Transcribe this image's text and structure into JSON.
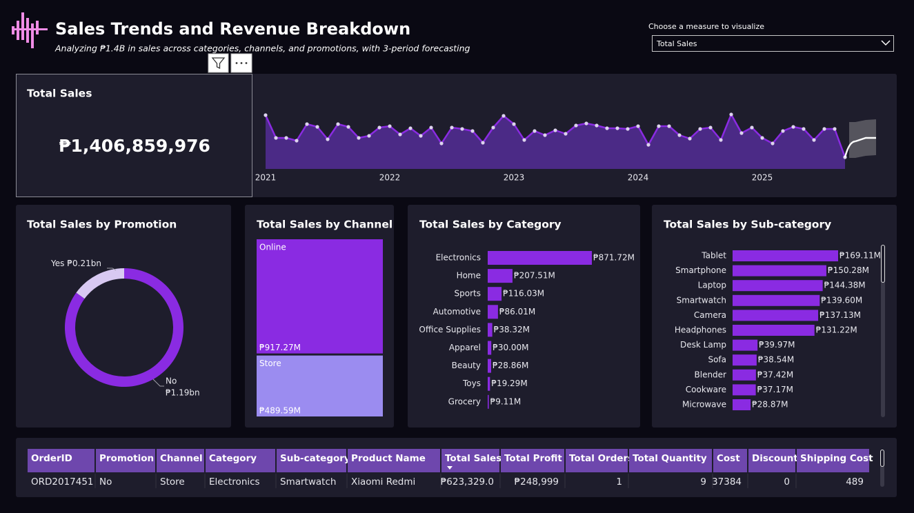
{
  "header": {
    "title": "Sales Trends and Revenue Breakdown",
    "subtitle": "Analyzing ₱1.4B in sales across categories, channels, and promotions, with 3-period forecasting"
  },
  "measure_selector": {
    "label": "Choose a measure to visualize",
    "selected": "Total Sales"
  },
  "kpi": {
    "title": "Total Sales",
    "value": "₱1,406,859,976"
  },
  "chart_data": [
    {
      "type": "area",
      "categories": [
        "2021",
        null,
        null,
        null,
        null,
        null,
        null,
        null,
        null,
        null,
        null,
        null,
        "2022",
        null,
        null,
        null,
        null,
        null,
        null,
        null,
        null,
        null,
        null,
        null,
        "2023",
        null,
        null,
        null,
        null,
        null,
        null,
        null,
        null,
        null,
        null,
        null,
        "2024",
        null,
        null,
        null,
        null,
        null,
        null,
        null,
        null,
        null,
        null,
        null,
        "2025",
        null,
        null,
        null,
        null,
        null,
        null,
        null,
        null,
        null,
        null,
        null
      ],
      "series": [
        {
          "color": "#8a2be2",
          "fill": "#4b2a86",
          "point_color": "#ddd3ee",
          "values": [
            29.5,
            21.25,
            21.25,
            20.25,
            26.25,
            25.25,
            20.75,
            26.25,
            25.25,
            21.25,
            22,
            25,
            25.5,
            22.5,
            24.75,
            22,
            25,
            19.25,
            25,
            24.5,
            23.75,
            19.5,
            25,
            29.25,
            26.25,
            20.5,
            23.75,
            22.25,
            24,
            22.75,
            25.75,
            26.5,
            25.75,
            24.75,
            24.75,
            24.5,
            25.5,
            18.75,
            25.5,
            25.5,
            22.25,
            21,
            24.5,
            25,
            20.5,
            29.75,
            23,
            25,
            21.25,
            19.25,
            23.75,
            25.25,
            24.5,
            20.5,
            24.5,
            24.5,
            14.25,
            null,
            null,
            null
          ]
        }
      ],
      "forecast": {
        "color": "#ffffff",
        "band_color": "#5b5b63",
        "values": [
          null,
          null,
          null,
          null,
          null,
          null,
          null,
          null,
          null,
          null,
          null,
          null,
          null,
          null,
          null,
          null,
          null,
          null,
          null,
          null,
          null,
          null,
          null,
          null,
          null,
          null,
          null,
          null,
          null,
          null,
          null,
          null,
          null,
          null,
          null,
          null,
          null,
          null,
          null,
          null,
          null,
          null,
          null,
          null,
          null,
          null,
          null,
          null,
          null,
          null,
          null,
          null,
          null,
          null,
          null,
          null,
          null,
          20,
          21.25,
          21.25
        ],
        "upper": [
          null,
          null,
          null,
          null,
          null,
          null,
          null,
          null,
          null,
          null,
          null,
          null,
          null,
          null,
          null,
          null,
          null,
          null,
          null,
          null,
          null,
          null,
          null,
          null,
          null,
          null,
          null,
          null,
          null,
          null,
          null,
          null,
          null,
          null,
          null,
          null,
          null,
          null,
          null,
          null,
          null,
          null,
          null,
          null,
          null,
          null,
          null,
          null,
          null,
          null,
          null,
          null,
          null,
          null,
          null,
          null,
          null,
          27,
          27.75,
          28
        ],
        "lower": [
          null,
          null,
          null,
          null,
          null,
          null,
          null,
          null,
          null,
          null,
          null,
          null,
          null,
          null,
          null,
          null,
          null,
          null,
          null,
          null,
          null,
          null,
          null,
          null,
          null,
          null,
          null,
          null,
          null,
          null,
          null,
          null,
          null,
          null,
          null,
          null,
          null,
          null,
          null,
          null,
          null,
          null,
          null,
          null,
          null,
          null,
          null,
          null,
          null,
          null,
          null,
          null,
          null,
          null,
          null,
          null,
          null,
          14,
          14.75,
          15
        ]
      },
      "ylim": [
        10,
        32.5
      ]
    },
    {
      "type": "donut",
      "title": "Total Sales by Promotion",
      "categories": [
        "Yes",
        "No"
      ],
      "values": [
        0.21,
        1.19
      ],
      "value_labels": [
        "₱0.21bn",
        "₱1.19bn"
      ],
      "colors": [
        "#d8c9f2",
        "#8a2be2"
      ]
    },
    {
      "type": "treemap",
      "title": "Total Sales by Channel",
      "categories": [
        "Online",
        "Store"
      ],
      "values": [
        917.27,
        489.59
      ],
      "value_labels": [
        "₱917.27M",
        "₱489.59M"
      ],
      "colors": [
        "#8a2be2",
        "#9b8cf0"
      ]
    },
    {
      "type": "hbar",
      "title": "Total Sales by Category",
      "categories": [
        "Electronics",
        "Home",
        "Sports",
        "Automotive",
        "Office Supplies",
        "Apparel",
        "Beauty",
        "Toys",
        "Grocery"
      ],
      "values": [
        871.72,
        207.51,
        116.03,
        86.01,
        38.32,
        30.0,
        28.86,
        19.29,
        9.11
      ],
      "value_labels": [
        "₱871.72M",
        "₱207.51M",
        "₱116.03M",
        "₱86.01M",
        "₱38.32M",
        "₱30.00M",
        "₱28.86M",
        "₱19.29M",
        "₱9.11M"
      ],
      "color": "#8a2be2"
    },
    {
      "type": "hbar",
      "title": "Total Sales by Sub-category",
      "categories": [
        "Tablet",
        "Smartphone",
        "Laptop",
        "Smartwatch",
        "Camera",
        "Headphones",
        "Desk Lamp",
        "Sofa",
        "Blender",
        "Cookware",
        "Microwave"
      ],
      "values": [
        169.11,
        150.28,
        144.38,
        139.6,
        137.13,
        131.22,
        39.97,
        38.54,
        37.42,
        37.17,
        28.87
      ],
      "value_labels": [
        "₱169.11M",
        "₱150.28M",
        "₱144.38M",
        "₱139.60M",
        "₱137.13M",
        "₱131.22M",
        "₱39.97M",
        "₱38.54M",
        "₱37.42M",
        "₱37.17M",
        "₱28.87M"
      ],
      "color": "#8a2be2"
    }
  ],
  "table": {
    "columns": [
      "OrderID",
      "Promotion",
      "Channel",
      "Category",
      "Sub-category",
      "Product Name",
      "Total Sales",
      "Total Profit",
      "Total Orders",
      "Total Quantity",
      "Cost",
      "Discount",
      "Shipping Cost"
    ],
    "rows": [
      [
        "ORD2017451",
        "No",
        "Store",
        "Electronics",
        "Smartwatch",
        "Xiaomi Redmi",
        "₱623,329.0",
        "₱248,999",
        1,
        9,
        37384,
        0,
        489
      ]
    ],
    "sort": {
      "column": 6,
      "direction": "descending"
    }
  }
}
